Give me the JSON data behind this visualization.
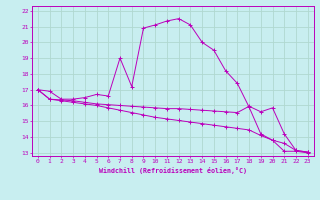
{
  "xlabel": "Windchill (Refroidissement éolien,°C)",
  "bg_color": "#c8eef0",
  "grid_color": "#b0d8d0",
  "line_color": "#bb00bb",
  "xlim": [
    -0.5,
    23.5
  ],
  "ylim": [
    12.8,
    22.3
  ],
  "yticks": [
    13,
    14,
    15,
    16,
    17,
    18,
    19,
    20,
    21,
    22
  ],
  "xticks": [
    0,
    1,
    2,
    3,
    4,
    5,
    6,
    7,
    8,
    9,
    10,
    11,
    12,
    13,
    14,
    15,
    16,
    17,
    18,
    19,
    20,
    21,
    22,
    23
  ],
  "line1_x": [
    0,
    1,
    2,
    3,
    4,
    5,
    6,
    7,
    8,
    9,
    10,
    11,
    12,
    13,
    14,
    15,
    16,
    17,
    18,
    19,
    20,
    21,
    22,
    23
  ],
  "line1_y": [
    17.0,
    16.9,
    16.4,
    16.4,
    16.5,
    16.7,
    16.6,
    19.0,
    17.2,
    20.9,
    21.1,
    21.35,
    21.5,
    21.1,
    20.0,
    19.5,
    18.2,
    17.4,
    15.9,
    14.2,
    13.8,
    13.1,
    13.1,
    13.0
  ],
  "line2_x": [
    0,
    1,
    2,
    3,
    4,
    5,
    6,
    7,
    8,
    9,
    10,
    11,
    12,
    13,
    14,
    15,
    16,
    17,
    18,
    19,
    20,
    21,
    22,
    23
  ],
  "line2_y": [
    17.0,
    16.4,
    16.35,
    16.3,
    16.2,
    16.1,
    16.05,
    16.0,
    15.95,
    15.9,
    15.85,
    15.8,
    15.8,
    15.75,
    15.7,
    15.65,
    15.6,
    15.55,
    15.95,
    15.6,
    15.85,
    14.2,
    13.15,
    13.05
  ],
  "line3_x": [
    0,
    1,
    2,
    3,
    4,
    5,
    6,
    7,
    8,
    9,
    10,
    11,
    12,
    13,
    14,
    15,
    16,
    17,
    18,
    19,
    20,
    21,
    22,
    23
  ],
  "line3_y": [
    17.0,
    16.4,
    16.3,
    16.2,
    16.1,
    16.0,
    15.85,
    15.7,
    15.55,
    15.4,
    15.25,
    15.15,
    15.05,
    14.95,
    14.85,
    14.75,
    14.65,
    14.55,
    14.45,
    14.1,
    13.8,
    13.6,
    13.15,
    13.05
  ]
}
